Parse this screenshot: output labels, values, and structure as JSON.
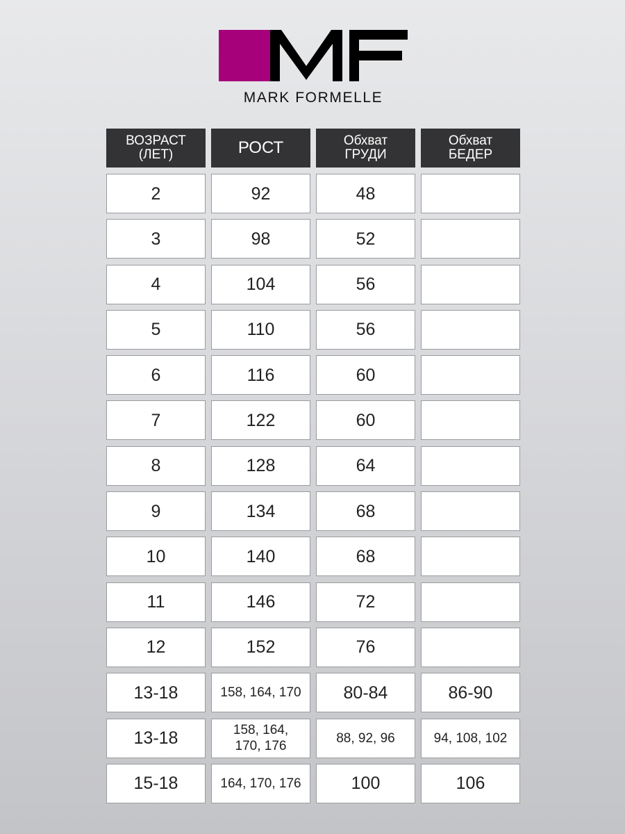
{
  "logo": {
    "letters": "MF",
    "brand": "MARK FORMELLE",
    "accent": "#a6007a"
  },
  "table": {
    "headers": [
      "ВОЗРАСТ\n(ЛЕТ)",
      "РОСТ",
      "Обхват\nГРУДИ",
      "Обхват\nБЕДЕР"
    ],
    "rows": [
      [
        "2",
        "92",
        "48",
        ""
      ],
      [
        "3",
        "98",
        "52",
        ""
      ],
      [
        "4",
        "104",
        "56",
        ""
      ],
      [
        "5",
        "110",
        "56",
        ""
      ],
      [
        "6",
        "116",
        "60",
        ""
      ],
      [
        "7",
        "122",
        "60",
        ""
      ],
      [
        "8",
        "128",
        "64",
        ""
      ],
      [
        "9",
        "134",
        "68",
        ""
      ],
      [
        "10",
        "140",
        "68",
        ""
      ],
      [
        "11",
        "146",
        "72",
        ""
      ],
      [
        "12",
        "152",
        "76",
        ""
      ],
      [
        "13-18",
        "158, 164, 170",
        "80-84",
        "86-90"
      ],
      [
        "13-18",
        "158, 164,\n170, 176",
        "88, 92, 96",
        "94, 108, 102"
      ],
      [
        "15-18",
        "164, 170, 176",
        "100",
        "106"
      ]
    ]
  }
}
